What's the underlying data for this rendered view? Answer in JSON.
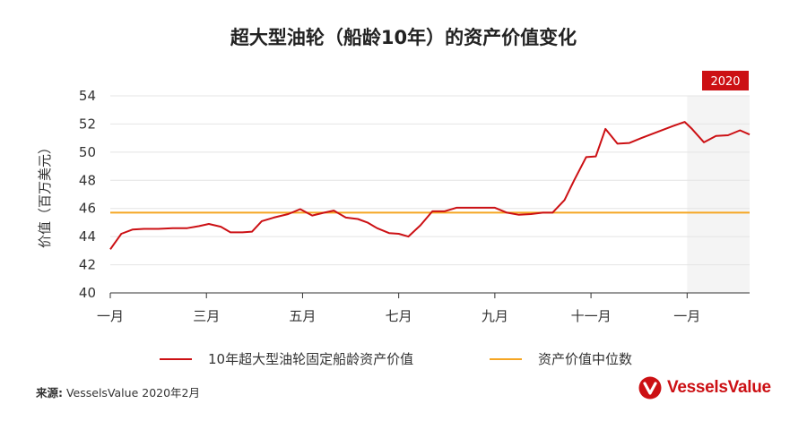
{
  "chart_data": {
    "type": "line",
    "title": "超大型油轮（船龄10年）的资产价值变化",
    "ylabel": "价值（百万美元）",
    "xlabel": "",
    "ylim": [
      40,
      54
    ],
    "yticks": [
      40,
      42,
      44,
      46,
      48,
      50,
      52,
      54
    ],
    "xticks": [
      {
        "label": "一月",
        "x": 0
      },
      {
        "label": "三月",
        "x": 2
      },
      {
        "label": "五月",
        "x": 4
      },
      {
        "label": "七月",
        "x": 6
      },
      {
        "label": "九月",
        "x": 8
      },
      {
        "label": "十一月",
        "x": 10
      },
      {
        "label": "一月",
        "x": 12
      }
    ],
    "xlim": [
      0,
      13.3
    ],
    "grid": true,
    "highlight_region": {
      "label": "2020",
      "x_start": 12,
      "x_end": 13.3,
      "color": "#f4f4f4"
    },
    "legend_position": "bottom",
    "series": [
      {
        "name": "10年超大型油轮固定船龄资产价值",
        "color": "#cc1014",
        "points": [
          [
            0.0,
            43.1
          ],
          [
            0.23,
            44.2
          ],
          [
            0.46,
            44.5
          ],
          [
            0.7,
            44.55
          ],
          [
            1.0,
            44.55
          ],
          [
            1.3,
            44.6
          ],
          [
            1.6,
            44.6
          ],
          [
            1.85,
            44.75
          ],
          [
            2.05,
            44.9
          ],
          [
            2.3,
            44.7
          ],
          [
            2.5,
            44.3
          ],
          [
            2.75,
            44.3
          ],
          [
            2.95,
            44.35
          ],
          [
            3.15,
            45.1
          ],
          [
            3.4,
            45.35
          ],
          [
            3.7,
            45.6
          ],
          [
            3.95,
            45.95
          ],
          [
            4.2,
            45.5
          ],
          [
            4.45,
            45.7
          ],
          [
            4.65,
            45.85
          ],
          [
            4.9,
            45.35
          ],
          [
            5.15,
            45.25
          ],
          [
            5.35,
            45.0
          ],
          [
            5.55,
            44.6
          ],
          [
            5.8,
            44.25
          ],
          [
            6.0,
            44.2
          ],
          [
            6.2,
            44.0
          ],
          [
            6.45,
            44.8
          ],
          [
            6.7,
            45.8
          ],
          [
            6.95,
            45.8
          ],
          [
            7.2,
            46.05
          ],
          [
            7.5,
            46.05
          ],
          [
            7.8,
            46.05
          ],
          [
            8.0,
            46.05
          ],
          [
            8.25,
            45.7
          ],
          [
            8.5,
            45.55
          ],
          [
            8.75,
            45.6
          ],
          [
            9.0,
            45.7
          ],
          [
            9.2,
            45.7
          ],
          [
            9.45,
            46.6
          ],
          [
            9.65,
            48.0
          ],
          [
            9.9,
            49.65
          ],
          [
            10.1,
            49.7
          ],
          [
            10.3,
            51.65
          ],
          [
            10.55,
            50.6
          ],
          [
            10.8,
            50.65
          ],
          [
            11.05,
            51.0
          ],
          [
            11.35,
            51.4
          ],
          [
            11.7,
            51.85
          ],
          [
            11.95,
            52.15
          ],
          [
            12.1,
            51.65
          ],
          [
            12.35,
            50.7
          ],
          [
            12.6,
            51.15
          ],
          [
            12.85,
            51.2
          ],
          [
            13.1,
            51.55
          ],
          [
            13.3,
            51.25
          ]
        ]
      },
      {
        "name": "资产价值中位数",
        "color": "#f5a623",
        "points": [
          [
            0.0,
            45.7
          ],
          [
            13.3,
            45.7
          ]
        ]
      }
    ]
  },
  "footer": {
    "source_label": "来源:",
    "source_text": " VesselsValue 2020年2月",
    "brand": "VesselsValue"
  }
}
